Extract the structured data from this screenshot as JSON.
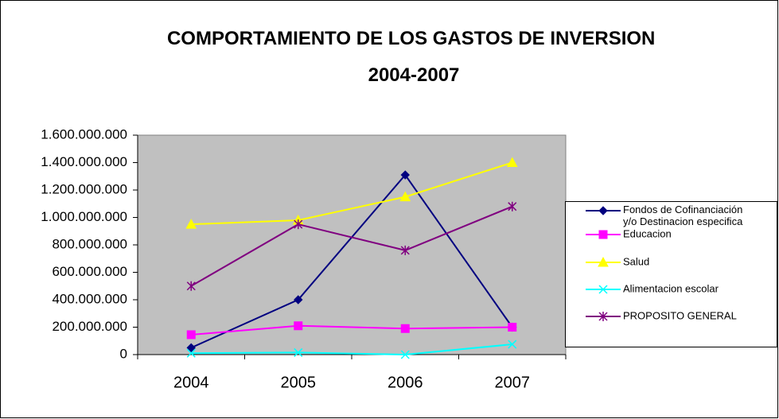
{
  "chart_data": {
    "type": "line",
    "title": "COMPORTAMIENTO DE LOS GASTOS DE INVERSION 2004-2007",
    "categories": [
      "2004",
      "2005",
      "2006",
      "2007"
    ],
    "ylim": [
      0,
      1600000000
    ],
    "yticks": [
      0,
      {
        "value": 200000000,
        "label": "200.000.000"
      },
      {
        "value": 400000000,
        "label": "400.000.000"
      },
      {
        "value": 600000000,
        "label": "600.000.000"
      },
      {
        "value": 800000000,
        "label": "800.000.000"
      },
      {
        "value": 1000000000,
        "label": "1.000.000.000"
      },
      {
        "value": 1200000000,
        "label": "1.200.000.000"
      },
      {
        "value": 1400000000,
        "label": "1.400.000.000"
      },
      {
        "value": 1600000000,
        "label": "1.600.000.000"
      }
    ],
    "plot_background": "#c0c0c0",
    "legend": "right",
    "series": [
      {
        "name": "Fondos de Cofinanciación y/o Destinacion especifica",
        "color": "#000080",
        "marker": "diamond",
        "values": [
          50000000,
          400000000,
          1310000000,
          200000000
        ]
      },
      {
        "name": "Educacion",
        "color": "#ff00ff",
        "marker": "square",
        "values": [
          145000000,
          210000000,
          190000000,
          200000000
        ]
      },
      {
        "name": "Salud",
        "color": "#ffff00",
        "marker": "triangle",
        "values": [
          950000000,
          980000000,
          1150000000,
          1400000000
        ]
      },
      {
        "name": "Alimentacion escolar",
        "color": "#00ffff",
        "marker": "x",
        "values": [
          10000000,
          15000000,
          0,
          75000000
        ]
      },
      {
        "name": "PROPOSITO GENERAL",
        "color": "#800080",
        "marker": "star",
        "values": [
          500000000,
          950000000,
          760000000,
          1080000000
        ]
      }
    ]
  }
}
